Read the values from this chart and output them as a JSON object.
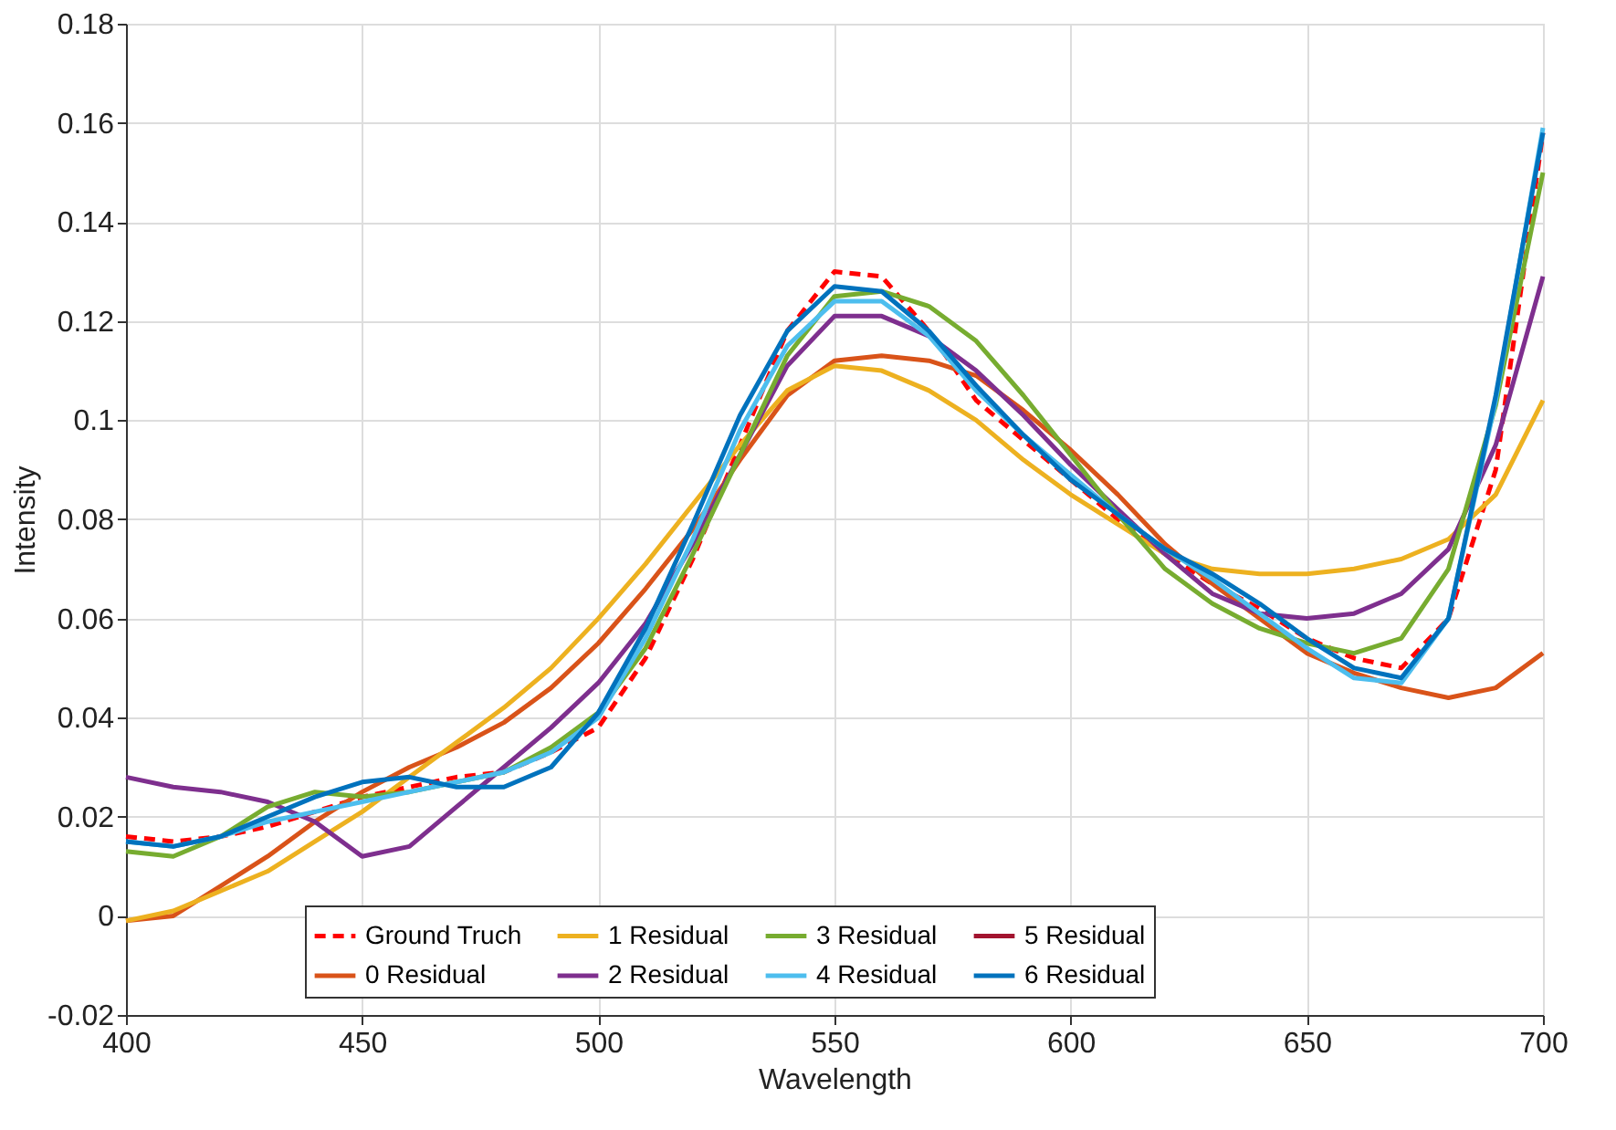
{
  "chart_data": {
    "type": "line",
    "xlabel": "Wavelength",
    "ylabel": "Intensity",
    "x": [
      400,
      410,
      420,
      430,
      440,
      450,
      460,
      470,
      480,
      490,
      500,
      510,
      520,
      530,
      540,
      550,
      560,
      570,
      580,
      590,
      600,
      610,
      620,
      630,
      640,
      650,
      660,
      670,
      680,
      690,
      700
    ],
    "xlim": [
      400,
      700
    ],
    "xticks": [
      400,
      450,
      500,
      550,
      600,
      650,
      700
    ],
    "ylim": [
      -0.02,
      0.18
    ],
    "yticks": [
      -0.02,
      0,
      0.02,
      0.04,
      0.06,
      0.08,
      0.1,
      0.12,
      0.14,
      0.16,
      0.18
    ],
    "grid": true,
    "legend": "bottom",
    "series": [
      {
        "name": "Ground Truch",
        "color": "#ff0000",
        "line_style": "dashed",
        "values": [
          0.016,
          0.015,
          0.016,
          0.018,
          0.021,
          0.024,
          0.026,
          0.028,
          0.029,
          0.033,
          0.038,
          0.052,
          0.072,
          0.095,
          0.118,
          0.13,
          0.129,
          0.118,
          0.104,
          0.096,
          0.088,
          0.08,
          0.073,
          0.067,
          0.062,
          0.056,
          0.052,
          0.05,
          0.06,
          0.09,
          0.158
        ]
      },
      {
        "name": "0 Residual",
        "color": "#d95319",
        "line_style": "solid",
        "values": [
          -0.001,
          0.0,
          0.006,
          0.012,
          0.019,
          0.025,
          0.03,
          0.034,
          0.039,
          0.046,
          0.055,
          0.066,
          0.078,
          0.092,
          0.105,
          0.112,
          0.113,
          0.112,
          0.109,
          0.102,
          0.094,
          0.085,
          0.075,
          0.067,
          0.06,
          0.053,
          0.049,
          0.046,
          0.044,
          0.046,
          0.053
        ]
      },
      {
        "name": "1 Residual",
        "color": "#edb120",
        "line_style": "solid",
        "values": [
          -0.001,
          0.001,
          0.005,
          0.009,
          0.015,
          0.021,
          0.028,
          0.035,
          0.042,
          0.05,
          0.06,
          0.071,
          0.083,
          0.095,
          0.106,
          0.111,
          0.11,
          0.106,
          0.1,
          0.092,
          0.085,
          0.079,
          0.073,
          0.07,
          0.069,
          0.069,
          0.07,
          0.072,
          0.076,
          0.085,
          0.104
        ]
      },
      {
        "name": "2 Residual",
        "color": "#7e2f8e",
        "line_style": "solid",
        "values": [
          0.028,
          0.026,
          0.025,
          0.023,
          0.019,
          0.012,
          0.014,
          0.022,
          0.03,
          0.038,
          0.047,
          0.059,
          0.075,
          0.093,
          0.111,
          0.121,
          0.121,
          0.117,
          0.11,
          0.101,
          0.091,
          0.082,
          0.073,
          0.065,
          0.061,
          0.06,
          0.061,
          0.065,
          0.074,
          0.095,
          0.129
        ]
      },
      {
        "name": "3 Residual",
        "color": "#77ac30",
        "line_style": "solid",
        "values": [
          0.013,
          0.012,
          0.016,
          0.022,
          0.025,
          0.024,
          0.025,
          0.027,
          0.029,
          0.034,
          0.041,
          0.054,
          0.073,
          0.093,
          0.113,
          0.125,
          0.126,
          0.123,
          0.116,
          0.105,
          0.093,
          0.081,
          0.07,
          0.063,
          0.058,
          0.055,
          0.053,
          0.056,
          0.07,
          0.103,
          0.15
        ]
      },
      {
        "name": "4 Residual",
        "color": "#4dbeee",
        "line_style": "solid",
        "values": [
          0.015,
          0.014,
          0.016,
          0.019,
          0.021,
          0.023,
          0.025,
          0.027,
          0.029,
          0.033,
          0.04,
          0.056,
          0.076,
          0.098,
          0.115,
          0.124,
          0.124,
          0.117,
          0.106,
          0.097,
          0.089,
          0.081,
          0.074,
          0.068,
          0.061,
          0.054,
          0.048,
          0.047,
          0.06,
          0.104,
          0.159
        ]
      },
      {
        "name": "5 Residual",
        "color": "#a2142f",
        "line_style": "solid",
        "values": [
          null,
          null,
          null,
          null,
          null,
          null,
          null,
          null,
          null,
          null,
          null,
          null,
          null,
          null,
          null,
          null,
          null,
          null,
          null,
          null,
          null,
          null,
          null,
          null,
          null,
          null,
          null,
          null,
          null,
          null,
          null
        ]
      },
      {
        "name": "6 Residual",
        "color": "#0072bd",
        "line_style": "solid",
        "values": [
          0.015,
          0.014,
          0.016,
          0.02,
          0.024,
          0.027,
          0.028,
          0.026,
          0.026,
          0.03,
          0.041,
          0.058,
          0.079,
          0.101,
          0.118,
          0.127,
          0.126,
          0.118,
          0.107,
          0.097,
          0.088,
          0.081,
          0.074,
          0.069,
          0.063,
          0.056,
          0.05,
          0.048,
          0.06,
          0.105,
          0.158
        ]
      }
    ]
  }
}
